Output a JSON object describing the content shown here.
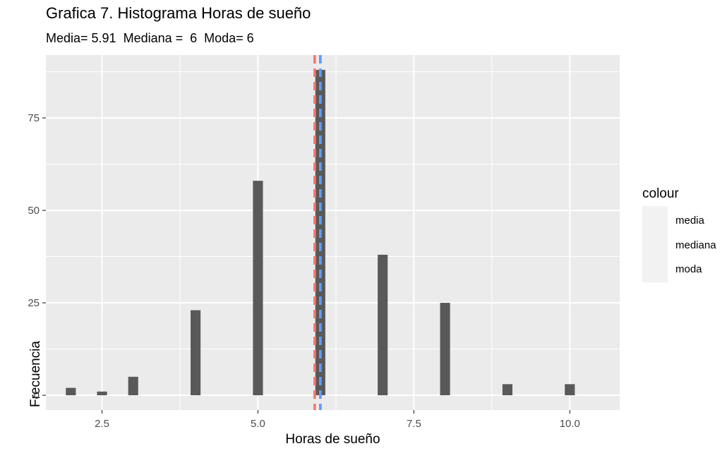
{
  "chart_data": {
    "type": "bar",
    "title": "Grafica 7. Histograma Horas de sueño",
    "subtitle": "Media= 5.91  Mediana =  6  Moda= 6",
    "xlabel": "Horas de sueño",
    "ylabel": "Frecuencia",
    "xlim": [
      1.6,
      10.8
    ],
    "ylim": [
      -4,
      92
    ],
    "x_ticks": [
      2.5,
      5.0,
      7.5,
      10.0
    ],
    "x_tick_labels": [
      "2.5",
      "5.0",
      "7.5",
      "10.0"
    ],
    "y_ticks": [
      0,
      25,
      50,
      75
    ],
    "y_tick_labels": [
      "0",
      "25",
      "50",
      "75"
    ],
    "bin_width": 0.16,
    "bars": [
      {
        "x": 2.0,
        "y": 2
      },
      {
        "x": 2.5,
        "y": 1
      },
      {
        "x": 3.0,
        "y": 5
      },
      {
        "x": 4.0,
        "y": 23
      },
      {
        "x": 5.0,
        "y": 58
      },
      {
        "x": 6.0,
        "y": 88
      },
      {
        "x": 7.0,
        "y": 38
      },
      {
        "x": 8.0,
        "y": 25
      },
      {
        "x": 9.0,
        "y": 3
      },
      {
        "x": 10.0,
        "y": 3
      }
    ],
    "vlines": [
      {
        "name": "media",
        "x": 5.91,
        "color": "#F8766D"
      },
      {
        "name": "mediana",
        "x": 6.0,
        "color": "#00BA38"
      },
      {
        "name": "moda",
        "x": 6.0,
        "color": "#619CFF"
      }
    ],
    "legend": {
      "title": "colour",
      "position": "right",
      "items": [
        {
          "label": "media",
          "color": "#F8766D"
        },
        {
          "label": "mediana",
          "color": "#00BA38"
        },
        {
          "label": "moda",
          "color": "#619CFF"
        }
      ]
    },
    "panel_background": "#EBEBEB",
    "bar_color": "#595959",
    "grid": true
  }
}
